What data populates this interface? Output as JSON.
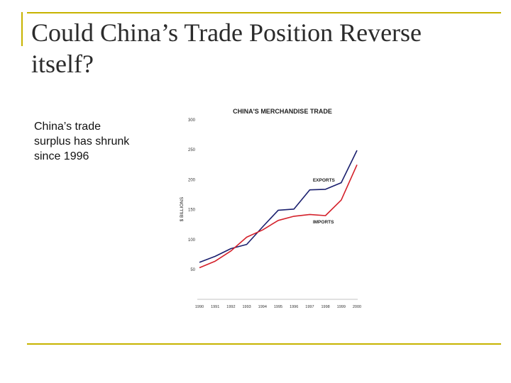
{
  "slide": {
    "title": "Could China’s Trade Position Reverse itself?",
    "body": "China’s trade surplus has shrunk since 1996"
  },
  "chart_data": {
    "type": "line",
    "title": "CHINA'S MERCHANDISE TRADE",
    "xlabel": "",
    "ylabel": "$ BILLIONS",
    "x": [
      1990,
      1991,
      1992,
      1993,
      1994,
      1995,
      1996,
      1997,
      1998,
      1999,
      2000
    ],
    "x_tick_labels": [
      "1990",
      "1991",
      "1992",
      "1993",
      "1994",
      "1995",
      "1996",
      "1997",
      "1998",
      "1999",
      "2000"
    ],
    "y_ticks": [
      50,
      100,
      150,
      200,
      250,
      300
    ],
    "ylim": [
      40,
      300
    ],
    "grid": false,
    "series": [
      {
        "name": "EXPORTS",
        "color": "#1a1f6e",
        "values": [
          62,
          72,
          85,
          92,
          121,
          149,
          151,
          183,
          184,
          195,
          249
        ]
      },
      {
        "name": "IMPORTS",
        "color": "#d4202a",
        "values": [
          53,
          64,
          81,
          104,
          116,
          132,
          139,
          142,
          140,
          166,
          225
        ]
      }
    ]
  }
}
